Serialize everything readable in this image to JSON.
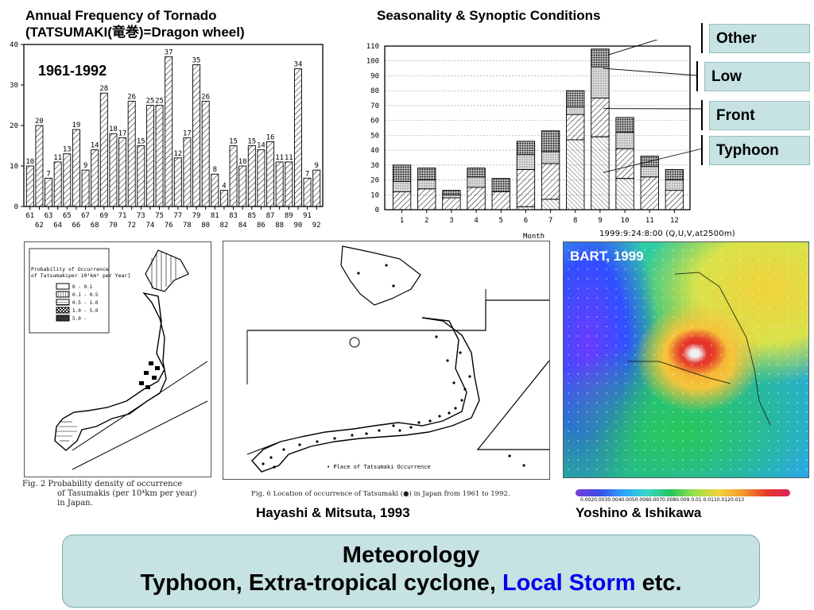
{
  "left_chart": {
    "title_line1": "Annual Frequency of Tornado",
    "title_line2": "(TATSUMAKI(竜巻)=Dragon wheel)",
    "period": "1961-1992"
  },
  "right_chart": {
    "title": "Seasonality & Synoptic Conditions",
    "x_axis_label": "Month",
    "legend": [
      "Other",
      "Low",
      "Front",
      "Typhoon"
    ]
  },
  "map_left": {
    "legend_title_1": "Probability of Occurrence",
    "legend_title_2": "of Tatsumakiper 10⁴km² per Year]",
    "legend_items": [
      "0 - 0.1",
      "0.1 - 0.5",
      "0.5 - 1.0",
      "1.0 - 5.0",
      "5.0 -"
    ],
    "caption_1": "Fig. 2  Probability density of occurrence",
    "caption_2": "of Tasumakis (per 10⁴km per year)",
    "caption_3": "in Japan."
  },
  "map_mid": {
    "legend": "• Place of Tatsumaki Occurrence",
    "caption": "Fig. 6  Location of occurrence of Tatsumaki (●) in Japan from 1961 to 1992.",
    "credit": "Hayashi & Mitsuta, 1993"
  },
  "map_right": {
    "header": "1999:9:24:8:00  (Q,U,V,at2500m)",
    "label": "BART, 1999",
    "colorbar_labels": "0.0020.0030.0040.0050.0060.0070.0080.009 0.01 0.0110.0120.013",
    "credit": "Yoshino & Ishikawa"
  },
  "bottom": {
    "line1": "Meteorology",
    "line2_prefix": "Typhoon, Extra-tropical cyclone, ",
    "line2_highlight": "Local Storm",
    "line2_suffix": " etc."
  },
  "colors": {
    "legend_bg": "#c6e2e3",
    "highlight": "#0000ee"
  },
  "chart_data": [
    {
      "type": "bar",
      "title": "Annual Frequency of Tornado (TATSUMAKI(竜巻)=Dragon wheel)",
      "categories": [
        "61",
        "62",
        "63",
        "64",
        "65",
        "66",
        "67",
        "68",
        "69",
        "70",
        "71",
        "72",
        "73",
        "74",
        "75",
        "76",
        "77",
        "78",
        "79",
        "80",
        "81",
        "82",
        "83",
        "84",
        "85",
        "86",
        "87",
        "88",
        "89",
        "90",
        "91",
        "92"
      ],
      "values": [
        10,
        20,
        7,
        11,
        13,
        19,
        9,
        14,
        28,
        18,
        17,
        26,
        15,
        25,
        25,
        37,
        12,
        17,
        35,
        26,
        8,
        4,
        15,
        10,
        15,
        14,
        16,
        11,
        11,
        34,
        7,
        9
      ],
      "value_labels": [
        "10",
        "20",
        "7",
        "11",
        "13",
        "19",
        "9",
        "14",
        "28",
        "18",
        "17",
        "26",
        "15",
        "25",
        "25",
        "37",
        "12",
        "17",
        "35",
        "26",
        "8",
        "4",
        "15",
        "10",
        "15",
        "14",
        "16",
        "11",
        "11",
        "34",
        "7",
        "9"
      ],
      "ylim": [
        0,
        40
      ],
      "yticks": [
        0,
        10,
        20,
        30,
        40
      ],
      "xlabel": "",
      "ylabel": ""
    },
    {
      "type": "bar",
      "stacked": true,
      "title": "Seasonality & Synoptic Conditions",
      "xlabel": "Month",
      "categories": [
        "1",
        "2",
        "3",
        "4",
        "5",
        "6",
        "7",
        "8",
        "9",
        "10",
        "11",
        "12"
      ],
      "ylim": [
        0,
        110
      ],
      "yticks": [
        0,
        10,
        20,
        30,
        40,
        50,
        60,
        70,
        80,
        90,
        100,
        110
      ],
      "series": [
        {
          "name": "Typhoon",
          "values": [
            0,
            0,
            0,
            0,
            0,
            2,
            7,
            47,
            49,
            21,
            0,
            0
          ]
        },
        {
          "name": "Front",
          "values": [
            12,
            14,
            8,
            15,
            12,
            25,
            24,
            17,
            26,
            20,
            22,
            13
          ]
        },
        {
          "name": "Low",
          "values": [
            7,
            6,
            2,
            7,
            0,
            10,
            8,
            5,
            21,
            11,
            7,
            7
          ]
        },
        {
          "name": "Other",
          "values": [
            11,
            8,
            3,
            6,
            9,
            9,
            14,
            11,
            12,
            10,
            7,
            7
          ]
        }
      ]
    }
  ]
}
